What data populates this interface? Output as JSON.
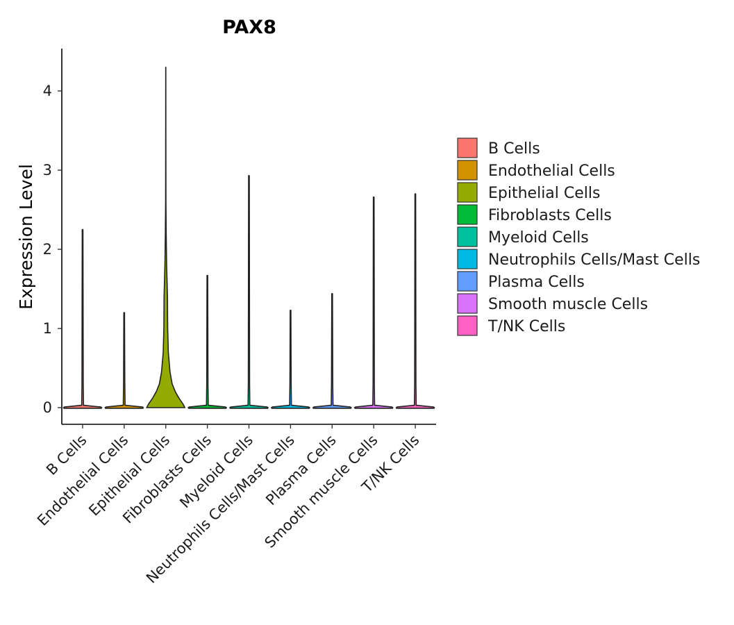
{
  "chart_data": {
    "type": "violin",
    "title": "PAX8",
    "xlabel": "",
    "ylabel": "Expression Level",
    "ylim": [
      -0.22,
      4.55
    ],
    "yticks": [
      "0",
      "1",
      "2",
      "3",
      "4"
    ],
    "categories": [
      "B Cells",
      "Endothelial Cells",
      "Epithelial Cells",
      "Fibroblasts Cells",
      "Myeloid Cells",
      "Neutrophils Cells/Mast Cells",
      "Plasma Cells",
      "Smooth muscle Cells",
      "T/NK Cells"
    ],
    "max_values": [
      2.25,
      1.2,
      4.3,
      1.67,
      2.93,
      1.23,
      1.44,
      2.66,
      2.7
    ],
    "colors": [
      "#F8766D",
      "#D39200",
      "#93AA00",
      "#00BA38",
      "#00C19F",
      "#00B9E3",
      "#619CFF",
      "#DB72FB",
      "#FF61C3"
    ],
    "epithelial_profile": [
      [
        0.0,
        0.9
      ],
      [
        0.05,
        0.8
      ],
      [
        0.12,
        0.62
      ],
      [
        0.2,
        0.45
      ],
      [
        0.3,
        0.3
      ],
      [
        0.45,
        0.2
      ],
      [
        0.7,
        0.12
      ],
      [
        1.0,
        0.09
      ],
      [
        1.4,
        0.08
      ],
      [
        1.8,
        0.04
      ],
      [
        2.2,
        0.02
      ],
      [
        2.6,
        0.008
      ],
      [
        3.5,
        0.004
      ],
      [
        4.3,
        0.002
      ]
    ],
    "legend": {
      "position": "right",
      "labels": [
        "B Cells",
        "Endothelial Cells",
        "Epithelial Cells",
        "Fibroblasts Cells",
        "Myeloid Cells",
        "Neutrophils Cells/Mast Cells",
        "Plasma Cells",
        "Smooth muscle Cells",
        "T/NK Cells"
      ]
    }
  }
}
